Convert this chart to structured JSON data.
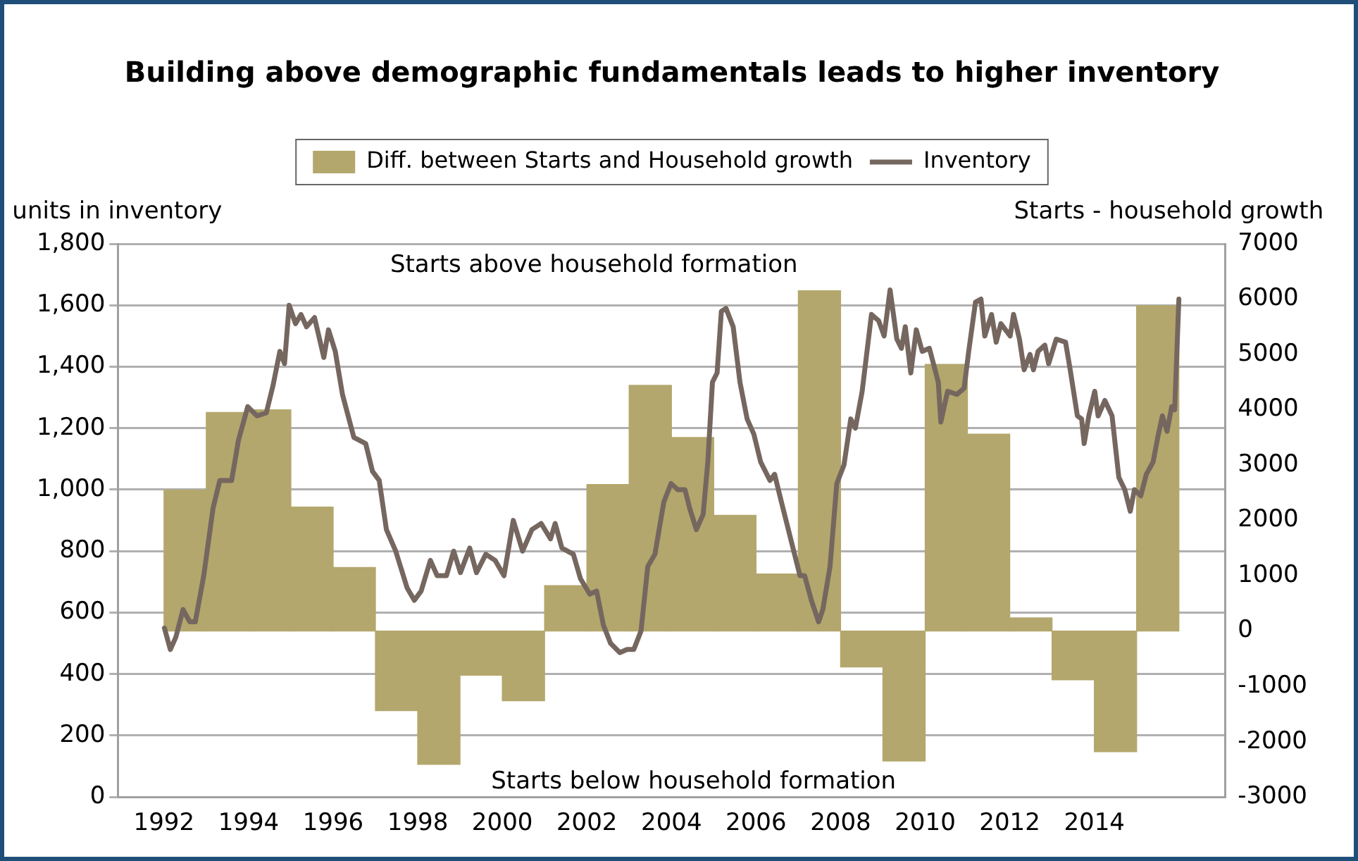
{
  "chart_data": {
    "type": "bar",
    "title": "Building above demographic fundamentals leads to higher inventory",
    "ylabel": "units in inventory",
    "y2label": "Starts - household growth",
    "xlim": [
      1992,
      2016
    ],
    "xticks": [
      1992,
      1994,
      1996,
      1998,
      2000,
      2002,
      2004,
      2006,
      2008,
      2010,
      2012,
      2014
    ],
    "ylim": [
      0,
      1800
    ],
    "yticks": [
      0,
      200,
      400,
      600,
      800,
      {
        "value": 1000,
        "label": "1,000"
      },
      {
        "value": 1200,
        "label": "1,200"
      },
      {
        "value": 1400,
        "label": "1,400"
      },
      {
        "value": 1600,
        "label": "1,600"
      },
      {
        "value": 1800,
        "label": "1,800"
      }
    ],
    "y2lim": [
      -3000,
      7000
    ],
    "y2ticks": [
      -3000,
      -2000,
      -1000,
      0,
      1000,
      2000,
      3000,
      4000,
      5000,
      6000,
      7000
    ],
    "grid": "y",
    "legend": "top",
    "annotations": [
      "Starts above household formation",
      "Starts below household formation"
    ],
    "series": [
      {
        "name": "Diff. between Starts and Household growth",
        "axis": "y2",
        "color": "#b3a76d",
        "x": [
          1992.5,
          1993.5,
          1994.5,
          1995.5,
          1996.5,
          1997.5,
          1998.5,
          1999.5,
          2000.5,
          2001.5,
          2002.5,
          2003.5,
          2004.5,
          2005.5,
          2006.5,
          2007.5,
          2008.5,
          2009.5,
          2010.5,
          2011.5,
          2012.5,
          2013.5,
          2014.5,
          2015.5
        ],
        "values": [
          2550,
          3950,
          4000,
          2240,
          1150,
          -1440,
          -2410,
          -800,
          -1260,
          820,
          2650,
          4440,
          3500,
          2090,
          1030,
          6150,
          -650,
          -2350,
          4820,
          3560,
          240,
          -880,
          -2180,
          5880
        ]
      },
      {
        "name": "Inventory",
        "type": "line",
        "axis": "y",
        "color": "#75675f",
        "x": [
          1992.01,
          1992.15,
          1992.28,
          1992.45,
          1992.61,
          1992.74,
          1992.94,
          1993.16,
          1993.32,
          1993.6,
          1993.76,
          1993.98,
          1994.2,
          1994.42,
          1994.58,
          1994.74,
          1994.85,
          1994.96,
          1995.11,
          1995.24,
          1995.37,
          1995.56,
          1995.78,
          1995.89,
          1996.05,
          1996.22,
          1996.49,
          1996.77,
          1996.93,
          1997.09,
          1997.26,
          1997.48,
          1997.75,
          1997.92,
          1998.08,
          1998.3,
          1998.46,
          1998.68,
          1998.85,
          1999.01,
          1999.23,
          1999.39,
          1999.61,
          1999.83,
          2000.04,
          2000.26,
          2000.48,
          2000.7,
          2000.92,
          2001.14,
          2001.25,
          2001.41,
          2001.68,
          2001.85,
          2002.07,
          2002.23,
          2002.39,
          2002.56,
          2002.78,
          2002.95,
          2003.11,
          2003.28,
          2003.44,
          2003.61,
          2003.82,
          2003.99,
          2004.15,
          2004.32,
          2004.43,
          2004.59,
          2004.75,
          2004.86,
          2004.97,
          2005.08,
          2005.18,
          2005.29,
          2005.46,
          2005.62,
          2005.79,
          2005.95,
          2006.11,
          2006.33,
          2006.44,
          2006.6,
          2006.82,
          2007.04,
          2007.15,
          2007.31,
          2007.48,
          2007.58,
          2007.75,
          2007.91,
          2008.08,
          2008.24,
          2008.35,
          2008.51,
          2008.73,
          2008.9,
          2009.03,
          2009.17,
          2009.33,
          2009.44,
          2009.53,
          2009.66,
          2009.79,
          2009.93,
          2010.1,
          2010.31,
          2010.37,
          2010.53,
          2010.75,
          2010.92,
          2011.03,
          2011.19,
          2011.32,
          2011.41,
          2011.57,
          2011.68,
          2011.79,
          2012.01,
          2012.09,
          2012.23,
          2012.34,
          2012.48,
          2012.56,
          2012.67,
          2012.83,
          2012.92,
          2013.1,
          2013.32,
          2013.43,
          2013.6,
          2013.7,
          2013.76,
          2013.87,
          2014.01,
          2014.09,
          2014.25,
          2014.42,
          2014.58,
          2014.72,
          2014.85,
          2014.95,
          2015.1,
          2015.23,
          2015.39,
          2015.5,
          2015.61,
          2015.72,
          2015.83,
          2015.9,
          2016.0
        ],
        "values": [
          550,
          480,
          520,
          610,
          570,
          570,
          720,
          940,
          1030,
          1030,
          1160,
          1270,
          1240,
          1250,
          1340,
          1450,
          1410,
          1600,
          1540,
          1570,
          1530,
          1560,
          1430,
          1520,
          1450,
          1310,
          1170,
          1150,
          1060,
          1030,
          870,
          800,
          680,
          640,
          670,
          770,
          720,
          720,
          800,
          730,
          810,
          730,
          790,
          770,
          720,
          900,
          800,
          870,
          890,
          840,
          890,
          810,
          790,
          710,
          660,
          670,
          560,
          500,
          470,
          480,
          480,
          540,
          750,
          790,
          960,
          1020,
          1000,
          1000,
          940,
          870,
          920,
          1090,
          1350,
          1380,
          1580,
          1590,
          1530,
          1350,
          1230,
          1180,
          1090,
          1030,
          1050,
          960,
          840,
          720,
          720,
          640,
          570,
          610,
          750,
          1020,
          1080,
          1230,
          1200,
          1320,
          1570,
          1550,
          1500,
          1650,
          1490,
          1460,
          1530,
          1380,
          1520,
          1450,
          1460,
          1350,
          1220,
          1320,
          1310,
          1330,
          1450,
          1610,
          1620,
          1500,
          1570,
          1480,
          1540,
          1500,
          1570,
          1490,
          1390,
          1440,
          1390,
          1450,
          1470,
          1410,
          1490,
          1480,
          1390,
          1240,
          1230,
          1150,
          1240,
          1320,
          1240,
          1290,
          1240,
          1040,
          1000,
          930,
          1000,
          980,
          1050,
          1090,
          1170,
          1240,
          1190,
          1270,
          1260,
          1620
        ]
      }
    ]
  }
}
